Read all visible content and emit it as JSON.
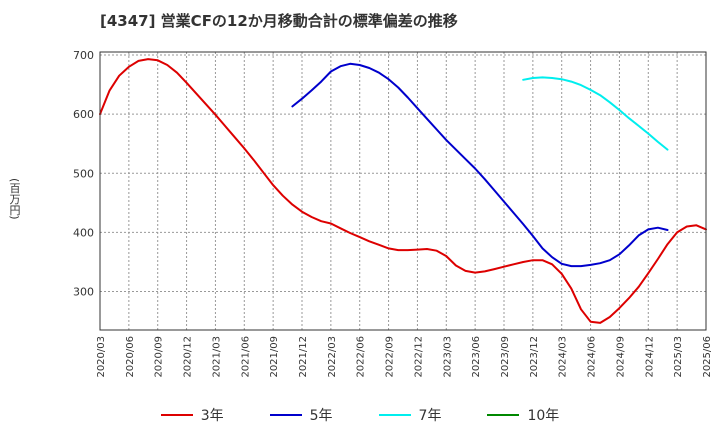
{
  "chart_data": {
    "type": "line",
    "title": "[4347]  営業CFの12か月移動合計の標準偏差の推移",
    "ylabel": "(百万円)",
    "xlabel": "",
    "ylim": [
      235,
      705
    ],
    "yticks": [
      300,
      400,
      500,
      600,
      700
    ],
    "x_tick_labels": [
      "2020/03",
      "2020/06",
      "2020/09",
      "2020/12",
      "2021/03",
      "2021/06",
      "2021/09",
      "2021/12",
      "2022/03",
      "2022/06",
      "2022/09",
      "2022/12",
      "2023/03",
      "2023/06",
      "2023/09",
      "2023/12",
      "2024/03",
      "2024/06",
      "2024/09",
      "2024/12",
      "2025/03",
      "2025/06"
    ],
    "grid": true,
    "legend_position": "bottom",
    "series": [
      {
        "name": "3年",
        "color": "#dd0000",
        "values": [
          [
            "2020/03",
            600
          ],
          [
            "2020/04",
            640
          ],
          [
            "2020/05",
            665
          ],
          [
            "2020/06",
            680
          ],
          [
            "2020/07",
            690
          ],
          [
            "2020/08",
            693
          ],
          [
            "2020/09",
            691
          ],
          [
            "2020/10",
            683
          ],
          [
            "2020/11",
            670
          ],
          [
            "2020/12",
            653
          ],
          [
            "2021/01",
            635
          ],
          [
            "2021/02",
            617
          ],
          [
            "2021/03",
            599
          ],
          [
            "2021/04",
            580
          ],
          [
            "2021/05",
            561
          ],
          [
            "2021/06",
            542
          ],
          [
            "2021/07",
            522
          ],
          [
            "2021/08",
            501
          ],
          [
            "2021/09",
            480
          ],
          [
            "2021/10",
            462
          ],
          [
            "2021/11",
            447
          ],
          [
            "2021/12",
            435
          ],
          [
            "2022/01",
            426
          ],
          [
            "2022/02",
            419
          ],
          [
            "2022/03",
            415
          ],
          [
            "2022/04",
            407
          ],
          [
            "2022/05",
            399
          ],
          [
            "2022/06",
            392
          ],
          [
            "2022/07",
            385
          ],
          [
            "2022/08",
            379
          ],
          [
            "2022/09",
            373
          ],
          [
            "2022/10",
            370
          ],
          [
            "2022/11",
            370
          ],
          [
            "2022/12",
            371
          ],
          [
            "2023/01",
            372
          ],
          [
            "2023/02",
            369
          ],
          [
            "2023/03",
            360
          ],
          [
            "2023/04",
            344
          ],
          [
            "2023/05",
            335
          ],
          [
            "2023/06",
            332
          ],
          [
            "2023/07",
            334
          ],
          [
            "2023/08",
            338
          ],
          [
            "2023/09",
            342
          ],
          [
            "2023/10",
            346
          ],
          [
            "2023/11",
            350
          ],
          [
            "2023/12",
            353
          ],
          [
            "2024/01",
            353
          ],
          [
            "2024/02",
            346
          ],
          [
            "2024/03",
            330
          ],
          [
            "2024/04",
            305
          ],
          [
            "2024/05",
            270
          ],
          [
            "2024/06",
            249
          ],
          [
            "2024/07",
            247
          ],
          [
            "2024/08",
            257
          ],
          [
            "2024/09",
            272
          ],
          [
            "2024/10",
            289
          ],
          [
            "2024/11",
            308
          ],
          [
            "2024/12",
            331
          ],
          [
            "2025/01",
            355
          ],
          [
            "2025/02",
            380
          ],
          [
            "2025/03",
            400
          ],
          [
            "2025/04",
            410
          ],
          [
            "2025/05",
            412
          ],
          [
            "2025/06",
            405
          ]
        ]
      },
      {
        "name": "5年",
        "color": "#0000cc",
        "values": [
          [
            "2021/11",
            613
          ],
          [
            "2021/12",
            626
          ],
          [
            "2022/01",
            640
          ],
          [
            "2022/02",
            655
          ],
          [
            "2022/03",
            672
          ],
          [
            "2022/04",
            681
          ],
          [
            "2022/05",
            685
          ],
          [
            "2022/06",
            683
          ],
          [
            "2022/07",
            678
          ],
          [
            "2022/08",
            670
          ],
          [
            "2022/09",
            659
          ],
          [
            "2022/10",
            645
          ],
          [
            "2022/11",
            628
          ],
          [
            "2022/12",
            610
          ],
          [
            "2023/01",
            592
          ],
          [
            "2023/02",
            574
          ],
          [
            "2023/03",
            556
          ],
          [
            "2023/04",
            540
          ],
          [
            "2023/05",
            524
          ],
          [
            "2023/06",
            508
          ],
          [
            "2023/07",
            490
          ],
          [
            "2023/08",
            471
          ],
          [
            "2023/09",
            452
          ],
          [
            "2023/10",
            433
          ],
          [
            "2023/11",
            414
          ],
          [
            "2023/12",
            394
          ],
          [
            "2024/01",
            373
          ],
          [
            "2024/02",
            358
          ],
          [
            "2024/03",
            347
          ],
          [
            "2024/04",
            343
          ],
          [
            "2024/05",
            343
          ],
          [
            "2024/06",
            345
          ],
          [
            "2024/07",
            348
          ],
          [
            "2024/08",
            353
          ],
          [
            "2024/09",
            363
          ],
          [
            "2024/10",
            378
          ],
          [
            "2024/11",
            395
          ],
          [
            "2024/12",
            405
          ],
          [
            "2025/01",
            408
          ],
          [
            "2025/02",
            404
          ]
        ]
      },
      {
        "name": "7年",
        "color": "#00eeee",
        "values": [
          [
            "2023/11",
            658
          ],
          [
            "2023/12",
            661
          ],
          [
            "2024/01",
            662
          ],
          [
            "2024/02",
            661
          ],
          [
            "2024/03",
            659
          ],
          [
            "2024/04",
            655
          ],
          [
            "2024/05",
            649
          ],
          [
            "2024/06",
            641
          ],
          [
            "2024/07",
            632
          ],
          [
            "2024/08",
            620
          ],
          [
            "2024/09",
            607
          ],
          [
            "2024/10",
            593
          ],
          [
            "2024/11",
            580
          ],
          [
            "2024/12",
            567
          ],
          [
            "2025/01",
            553
          ],
          [
            "2025/02",
            540
          ]
        ]
      },
      {
        "name": "10年",
        "color": "#008800",
        "values": []
      }
    ]
  }
}
